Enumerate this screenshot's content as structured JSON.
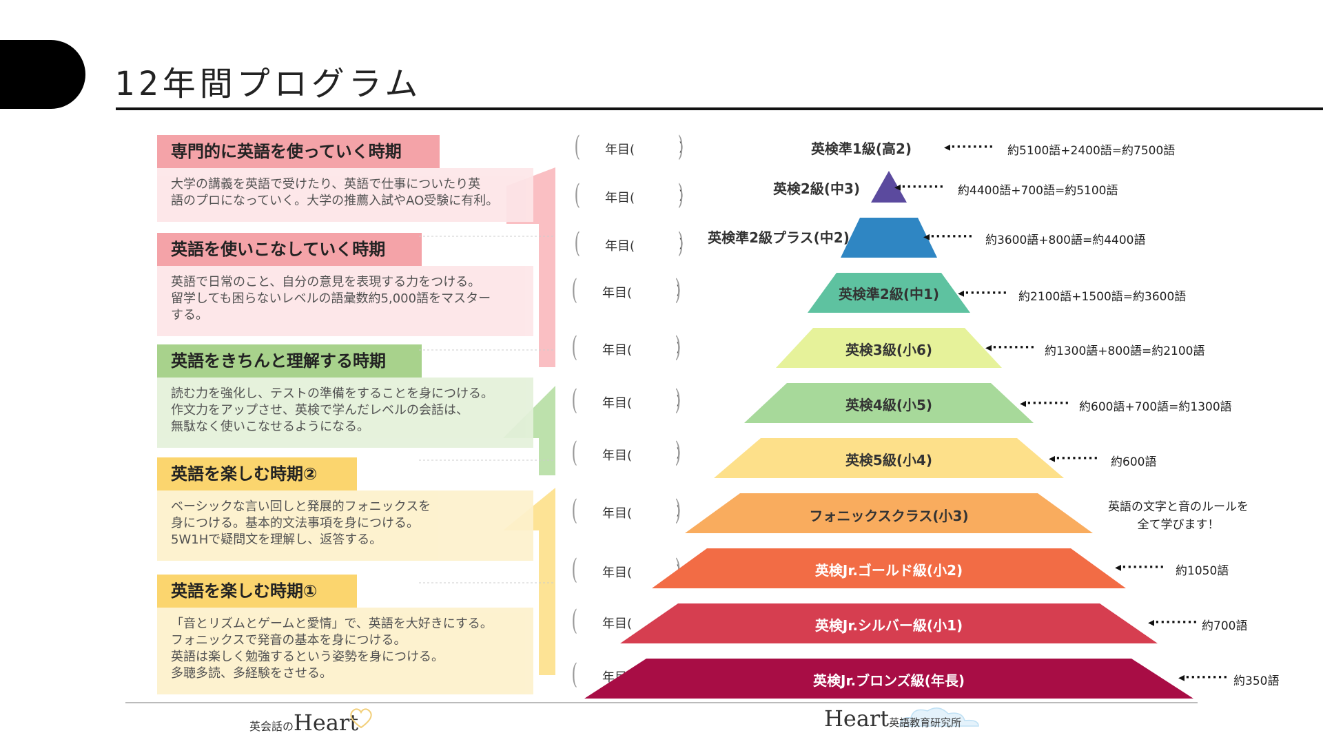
{
  "title": "12年間プログラム",
  "stages": [
    {
      "heading": "専門的に英語を使っていく時期",
      "lines": [
        "大学の講義を英語で受けたり、英語で仕事についたり英",
        "語のプロになっていく。大学の推薦入試やAO受験に有利。"
      ],
      "head_color": "#f4a3a8",
      "body_color": "#fde6e8"
    },
    {
      "heading": "英語を使いこなしていく時期",
      "lines": [
        "英語で日常のこと、自分の意見を表現する力をつける。",
        "留学しても困らないレベルの語彙数約5,000語をマスター",
        "する。"
      ],
      "head_color": "#f4a3a8",
      "body_color": "#fde6e8"
    },
    {
      "heading": "英語をきちんと理解する時期",
      "lines": [
        "読む力を強化し、テストの準備をすることを身につける。",
        "作文力をアップさせ、英検で学んだレベルの会話は、",
        "無駄なく使いこなせるようになる。"
      ],
      "head_color": "#a8d28c",
      "body_color": "#e4f1da"
    },
    {
      "heading": "英語を楽しむ時期②",
      "lines": [
        "ベーシックな言い回しと発展的フォニックスを",
        "身につける。基本的文法事項を身につける。",
        "5W1Hで疑問文を理解し、返答する。"
      ],
      "head_color": "#fbd56e",
      "body_color": "#fdf1cc"
    },
    {
      "heading": "英語を楽しむ時期①",
      "lines": [
        "「音とリズムとゲームと愛情」で、英語を大好きにする。",
        "フォニックスで発音の基本を身につける。",
        "英語は楽しく勉強するという姿勢を身につける。",
        "多聴多読、多経験をさせる。"
      ],
      "head_color": "#fbd56e",
      "body_color": "#fdf1cc"
    }
  ],
  "year_label": "年目(",
  "year_close": ")",
  "levels": [
    {
      "name": "英検準1級(高2)",
      "color": "",
      "text_color": "#333333",
      "vocab": "約5100語+2400語=約7500語"
    },
    {
      "name": "英検2級(中3)",
      "color": "#5b4a9e",
      "text_color": "#333333",
      "vocab": "約4400語+700語=約5100語"
    },
    {
      "name": "英検準2級プラス(中2)",
      "color": "#2f86c3",
      "text_color": "#333333",
      "vocab": "約3600語+800語=約4400語"
    },
    {
      "name": "英検準2級(中1)",
      "color": "#5ec2a0",
      "text_color": "#333333",
      "vocab": "約2100語+1500語=約3600語"
    },
    {
      "name": "英検3級(小6)",
      "color": "#e6f29a",
      "text_color": "#333333",
      "vocab": "約1300語+800語=約2100語"
    },
    {
      "name": "英検4級(小5)",
      "color": "#a7d99a",
      "text_color": "#333333",
      "vocab": "約600語+700語=約1300語"
    },
    {
      "name": "英検5級(小4)",
      "color": "#fde08a",
      "text_color": "#333333",
      "vocab": "約600語"
    },
    {
      "name": "フォニックスクラス(小3)",
      "color": "#f9ac5e",
      "text_color": "#333333",
      "vocab": ""
    },
    {
      "name": "英検Jr.ゴールド級(小2)",
      "color": "#f26c45",
      "text_color": "#ffffff",
      "vocab": "約1050語"
    },
    {
      "name": "英検Jr.シルバー級(小1)",
      "color": "#d63e50",
      "text_color": "#ffffff",
      "vocab": "約700語"
    },
    {
      "name": "英検Jr.ブロンズ級(年長)",
      "color": "#a80d45",
      "text_color": "#ffffff",
      "vocab": "約350語"
    }
  ],
  "phonics_note": [
    "英語の文字と音のルールを",
    "全て学びます！"
  ],
  "arrow_dots": "◂········",
  "footer": {
    "left_logo_small": "英会話の",
    "left_logo_big": "Heart",
    "right_logo_big": "Heart",
    "right_logo_small": "英語教育研究所"
  }
}
